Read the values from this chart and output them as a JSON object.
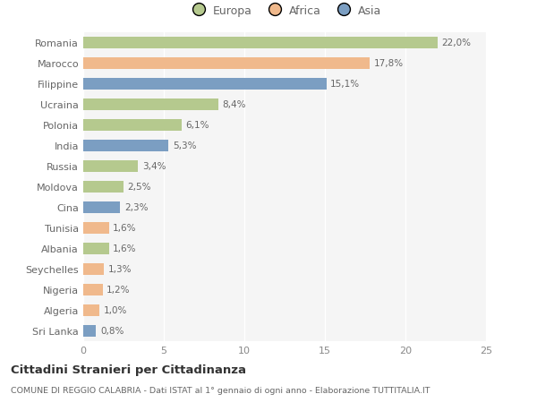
{
  "countries": [
    "Romania",
    "Marocco",
    "Filippine",
    "Ucraina",
    "Polonia",
    "India",
    "Russia",
    "Moldova",
    "Cina",
    "Tunisia",
    "Albania",
    "Seychelles",
    "Nigeria",
    "Algeria",
    "Sri Lanka"
  ],
  "values": [
    22.0,
    17.8,
    15.1,
    8.4,
    6.1,
    5.3,
    3.4,
    2.5,
    2.3,
    1.6,
    1.6,
    1.3,
    1.2,
    1.0,
    0.8
  ],
  "labels": [
    "22,0%",
    "17,8%",
    "15,1%",
    "8,4%",
    "6,1%",
    "5,3%",
    "3,4%",
    "2,5%",
    "2,3%",
    "1,6%",
    "1,6%",
    "1,3%",
    "1,2%",
    "1,0%",
    "0,8%"
  ],
  "continents": [
    "Europa",
    "Africa",
    "Asia",
    "Europa",
    "Europa",
    "Asia",
    "Europa",
    "Europa",
    "Asia",
    "Africa",
    "Europa",
    "Africa",
    "Africa",
    "Africa",
    "Asia"
  ],
  "colors": {
    "Europa": "#b5c98e",
    "Africa": "#f0b98c",
    "Asia": "#7b9ec2"
  },
  "legend_labels": [
    "Europa",
    "Africa",
    "Asia"
  ],
  "title": "Cittadini Stranieri per Cittadinanza",
  "subtitle": "COMUNE DI REGGIO CALABRIA - Dati ISTAT al 1° gennaio di ogni anno - Elaborazione TUTTITALIA.IT",
  "xlim": [
    0,
    25
  ],
  "xticks": [
    0,
    5,
    10,
    15,
    20,
    25
  ],
  "background_color": "#ffffff",
  "plot_bg_color": "#f5f5f5",
  "grid_color": "#ffffff",
  "bar_height": 0.55
}
